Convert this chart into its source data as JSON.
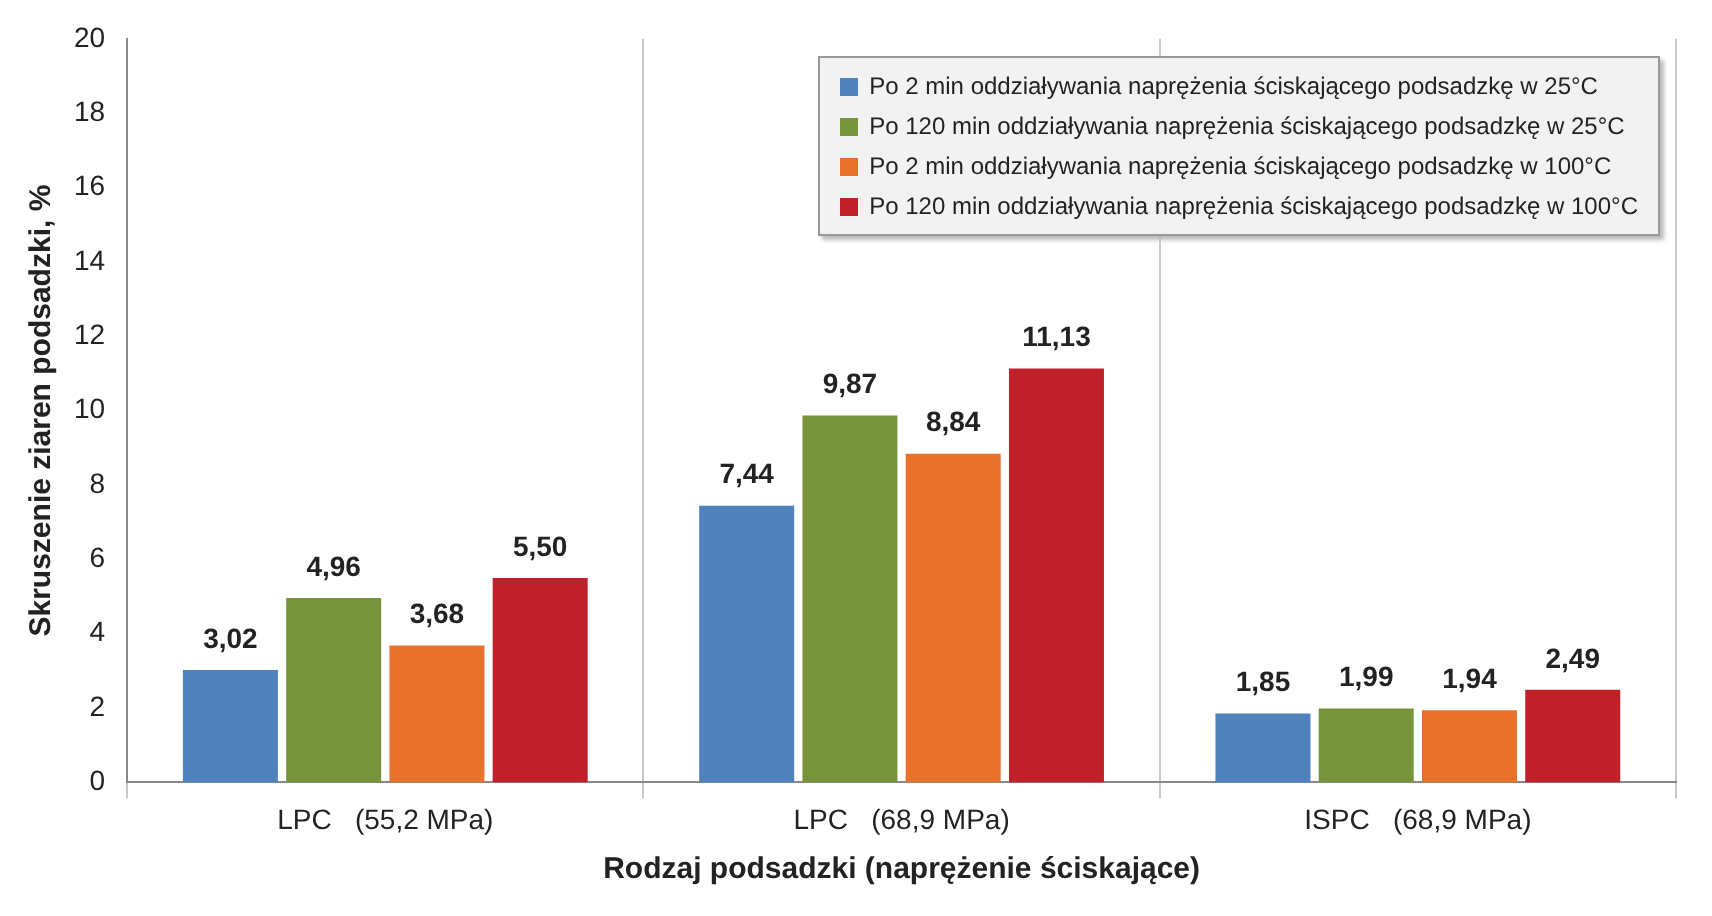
{
  "chart_data": {
    "type": "bar",
    "xlabel": "Rodzaj podsadzki (naprężenie ściskające)",
    "ylabel": "Skruszenie ziaren podsadzki, %",
    "categories": [
      "LPC   (55,2 MPa)",
      "LPC   (68,9 MPa)",
      "ISPC   (68,9 MPa)"
    ],
    "series": [
      {
        "name": "Po 2 min oddziaływania naprężenia ściskającego podsadzkę w 25°C",
        "color": "#4f81bd",
        "values": [
          3.02,
          7.44,
          1.85
        ],
        "value_labels": [
          "3,02",
          "7,44",
          "1,85"
        ]
      },
      {
        "name": "Po 120 min oddziaływania naprężenia ściskającego podsadzkę w 25°C",
        "color": "#77933c",
        "values": [
          4.96,
          9.87,
          1.99
        ],
        "value_labels": [
          "4,96",
          "9,87",
          "1,99"
        ]
      },
      {
        "name": "Po 2 min oddziaływania naprężenia ściskającego podsadzkę w 100°C",
        "color": "#e8722a",
        "values": [
          3.68,
          8.84,
          1.94
        ],
        "value_labels": [
          "3,68",
          "8,84",
          "1,94"
        ]
      },
      {
        "name": "Po 120 min oddziaływania naprężenia ściskającego podsadzkę w 100°C",
        "color": "#c0202a",
        "values": [
          5.5,
          11.13,
          2.49
        ],
        "value_labels": [
          "5,50",
          "11,13",
          "2,49"
        ]
      }
    ],
    "ylim": [
      0,
      20
    ],
    "yticks": [
      0,
      2,
      4,
      6,
      8,
      10,
      12,
      14,
      16,
      18,
      20
    ],
    "grid": "x",
    "legend": "top right"
  }
}
